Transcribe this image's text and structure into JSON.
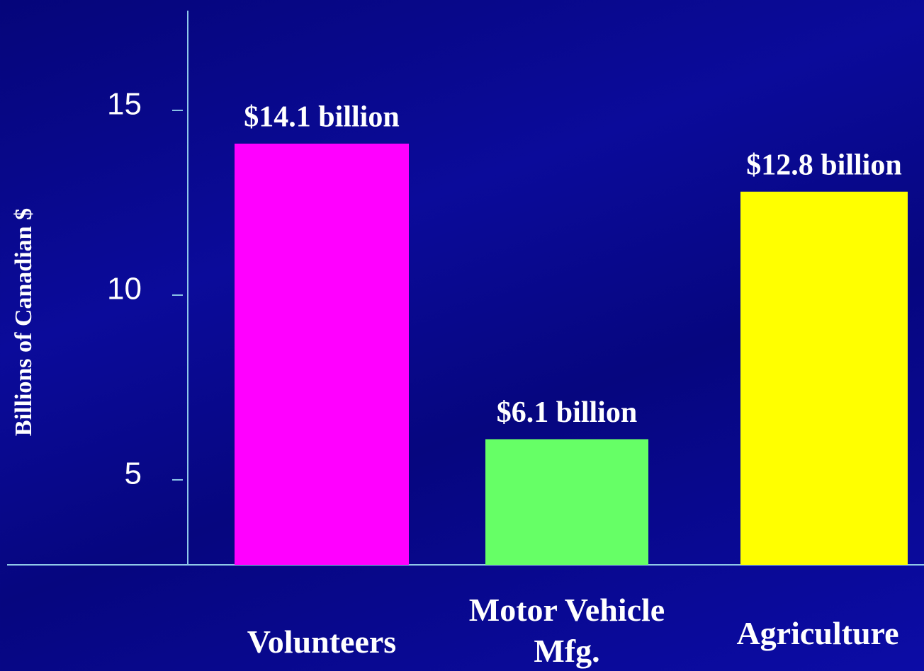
{
  "chart_data": {
    "type": "bar",
    "y_label": "Billions of Canadian $",
    "categories": [
      "Volunteers",
      "Motor Vehicle Mfg.",
      "Agriculture"
    ],
    "values": [
      14.1,
      6.1,
      12.8
    ],
    "value_labels": [
      "$14.1 billion",
      "$6.1 billion",
      "$12.8 billion"
    ],
    "colors": [
      "#ff00ff",
      "#66ff66",
      "#ffff00"
    ],
    "ylim": [
      2.7,
      17.7
    ],
    "yticks": [
      5,
      10,
      15
    ],
    "grid": false
  }
}
